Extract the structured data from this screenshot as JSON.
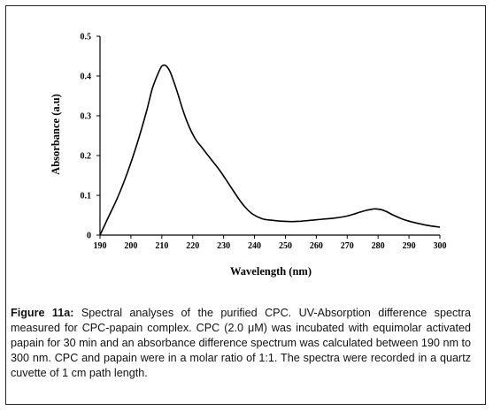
{
  "chart_data": {
    "type": "line",
    "xlabel": "Wavelength (nm)",
    "ylabel": "Absorbance (a.u)",
    "xlim": [
      190,
      300
    ],
    "ylim": [
      0,
      0.5
    ],
    "xticks": [
      190,
      200,
      210,
      220,
      230,
      240,
      250,
      260,
      270,
      280,
      290,
      300
    ],
    "yticks": [
      0,
      0.1,
      0.2,
      0.3,
      0.4,
      0.5
    ],
    "ytick_labels": [
      "0",
      "0.1",
      "0.2",
      "0.3",
      "0.4",
      "0.5"
    ],
    "grid": false,
    "series": [
      {
        "x": [
          190,
          193,
          196,
          199,
          202,
          205,
          207,
          209,
          210,
          211,
          212,
          213,
          215,
          217,
          219,
          221,
          223,
          226,
          229,
          232,
          235,
          237,
          239,
          241,
          243,
          246,
          249,
          252,
          255,
          258,
          262,
          266,
          270,
          273,
          276,
          278,
          279,
          281,
          283,
          285,
          288,
          291,
          295,
          298,
          300
        ],
        "y": [
          0.0,
          0.05,
          0.1,
          0.16,
          0.23,
          0.31,
          0.37,
          0.41,
          0.425,
          0.427,
          0.42,
          0.405,
          0.36,
          0.31,
          0.27,
          0.24,
          0.22,
          0.19,
          0.16,
          0.125,
          0.09,
          0.07,
          0.055,
          0.046,
          0.04,
          0.037,
          0.035,
          0.034,
          0.035,
          0.037,
          0.04,
          0.043,
          0.048,
          0.055,
          0.062,
          0.065,
          0.066,
          0.064,
          0.058,
          0.05,
          0.04,
          0.033,
          0.026,
          0.022,
          0.02
        ],
        "color": "#000000"
      }
    ]
  },
  "caption": {
    "label": "Figure 11a:",
    "text": " Spectral analyses of the purified CPC. UV-Absorption difference spectra measured for CPC-papain complex. CPC (2.0 μM) was incubated with equimolar activated papain for 30 min and an absorbance difference spectrum was calculated between 190 nm to 300 nm. CPC and papain were in a molar ratio of 1:1. The spectra were recorded in a quartz cuvette of 1 cm path length."
  }
}
